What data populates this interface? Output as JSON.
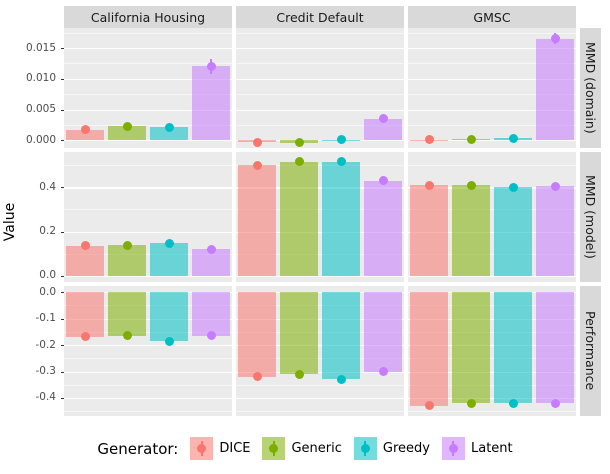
{
  "chart_data": {
    "type": "bar",
    "title": "",
    "ylabel": "Value",
    "legend_title": "Generator:",
    "legend_position": "bottom",
    "grid": true,
    "generators": [
      {
        "name": "DICE",
        "color": "#F8766D"
      },
      {
        "name": "Generic",
        "color": "#7CAE00"
      },
      {
        "name": "Greedy",
        "color": "#00BFC4"
      },
      {
        "name": "Latent",
        "color": "#C77CFF"
      }
    ],
    "facet_cols": [
      "California Housing",
      "Credit Default",
      "GMSC"
    ],
    "facet_rows": [
      {
        "label": "MMD (domain)",
        "ylim": [
          -0.00125,
          0.01825
        ],
        "ticks": [
          0.0,
          0.005,
          0.01,
          0.015
        ],
        "tick_labels": [
          "0.000",
          "0.005",
          "0.010",
          "0.015"
        ],
        "panels": [
          {
            "facet": "California Housing",
            "values": [
              0.0017,
              0.0023,
              0.0021,
              0.012
            ],
            "errors": [
              0.0003,
              0.0003,
              0.0003,
              0.0012
            ]
          },
          {
            "facet": "Credit Default",
            "values": [
              -0.0003,
              -0.0004,
              0.0001,
              0.0035
            ],
            "errors": [
              0.0002,
              0.0002,
              0.0002,
              0.0005
            ]
          },
          {
            "facet": "GMSC",
            "values": [
              0.0001,
              0.0002,
              0.0003,
              0.0165
            ],
            "errors": [
              0.0002,
              0.0002,
              0.0002,
              0.0009
            ]
          }
        ]
      },
      {
        "label": "MMD (model)",
        "ylim": [
          -0.028,
          0.56
        ],
        "ticks": [
          0.0,
          0.2,
          0.4
        ],
        "tick_labels": [
          "0.0",
          "0.2",
          "0.4"
        ],
        "panels": [
          {
            "facet": "California Housing",
            "values": [
              0.135,
              0.138,
              0.147,
              0.12
            ],
            "errors": [
              0.008,
              0.008,
              0.008,
              0.008
            ]
          },
          {
            "facet": "Credit Default",
            "values": [
              0.5,
              0.515,
              0.515,
              0.43
            ],
            "errors": [
              0.008,
              0.008,
              0.008,
              0.012
            ]
          },
          {
            "facet": "GMSC",
            "values": [
              0.41,
              0.41,
              0.4,
              0.405
            ],
            "errors": [
              0.008,
              0.008,
              0.008,
              0.008
            ]
          }
        ]
      },
      {
        "label": "Performance",
        "ylim": [
          -0.468,
          0.023
        ],
        "ticks": [
          0.0,
          -0.1,
          -0.2,
          -0.3,
          -0.4
        ],
        "tick_labels": [
          "0.0",
          "-0.1",
          "-0.2",
          "-0.3",
          "-0.4"
        ],
        "panels": [
          {
            "facet": "California Housing",
            "values": [
              -0.168,
              -0.165,
              -0.186,
              -0.165
            ],
            "errors": [
              0.008,
              0.008,
              0.008,
              0.008
            ]
          },
          {
            "facet": "Credit Default",
            "values": [
              -0.32,
              -0.31,
              -0.33,
              -0.3
            ],
            "errors": [
              0.01,
              0.01,
              0.012,
              0.015
            ]
          },
          {
            "facet": "GMSC",
            "values": [
              -0.43,
              -0.42,
              -0.42,
              -0.42
            ],
            "errors": [
              0.008,
              0.008,
              0.008,
              0.01
            ]
          }
        ]
      }
    ],
    "theme": {
      "panel_bg": "#EBEBEB",
      "strip_bg": "#D9D9D9",
      "grid_color": "#FFFFFF",
      "tick_label_color": "#4D4D4D",
      "bar_alpha": 0.55
    }
  }
}
